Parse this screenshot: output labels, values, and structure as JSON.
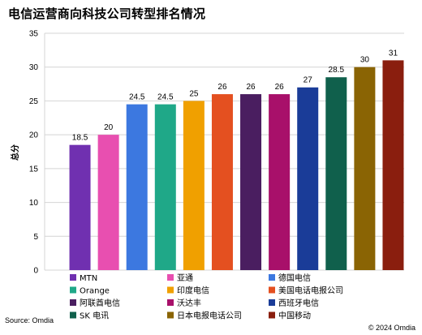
{
  "title": "电信运营商向科技公司转型排名情况",
  "source": "Source: Omdia",
  "copyright": "© 2024 Omdia",
  "chart_data": {
    "type": "bar",
    "title": "电信运营商向科技公司转型排名情况",
    "xlabel": "",
    "ylabel": "总分",
    "ylim": [
      0,
      35
    ],
    "yticks": [
      0,
      5,
      10,
      15,
      20,
      25,
      30,
      35
    ],
    "grid": true,
    "legend_position": "bottom",
    "categories": [
      "MTN",
      "亚通",
      "德国电信",
      "Orange",
      "印度电信",
      "美国电话电报公司",
      "阿联酋电信",
      "沃达丰",
      "西班牙电信",
      "SK 电讯",
      "日本电报电话公司",
      "中国移动"
    ],
    "values": [
      18.5,
      20,
      24.5,
      24.5,
      25,
      26,
      26,
      26,
      27,
      28.5,
      30,
      31
    ],
    "data_labels": [
      "18.5",
      "20",
      "24.5",
      "24.5",
      "25",
      "26",
      "26",
      "26",
      "27",
      "28.5",
      "30",
      "31"
    ],
    "colors": [
      "#7030b0",
      "#e84fb0",
      "#3c78e0",
      "#1fa888",
      "#f0a000",
      "#e45020",
      "#4a1e60",
      "#a8106a",
      "#1a3c98",
      "#10604c",
      "#8a6404",
      "#8a1e0e"
    ]
  }
}
